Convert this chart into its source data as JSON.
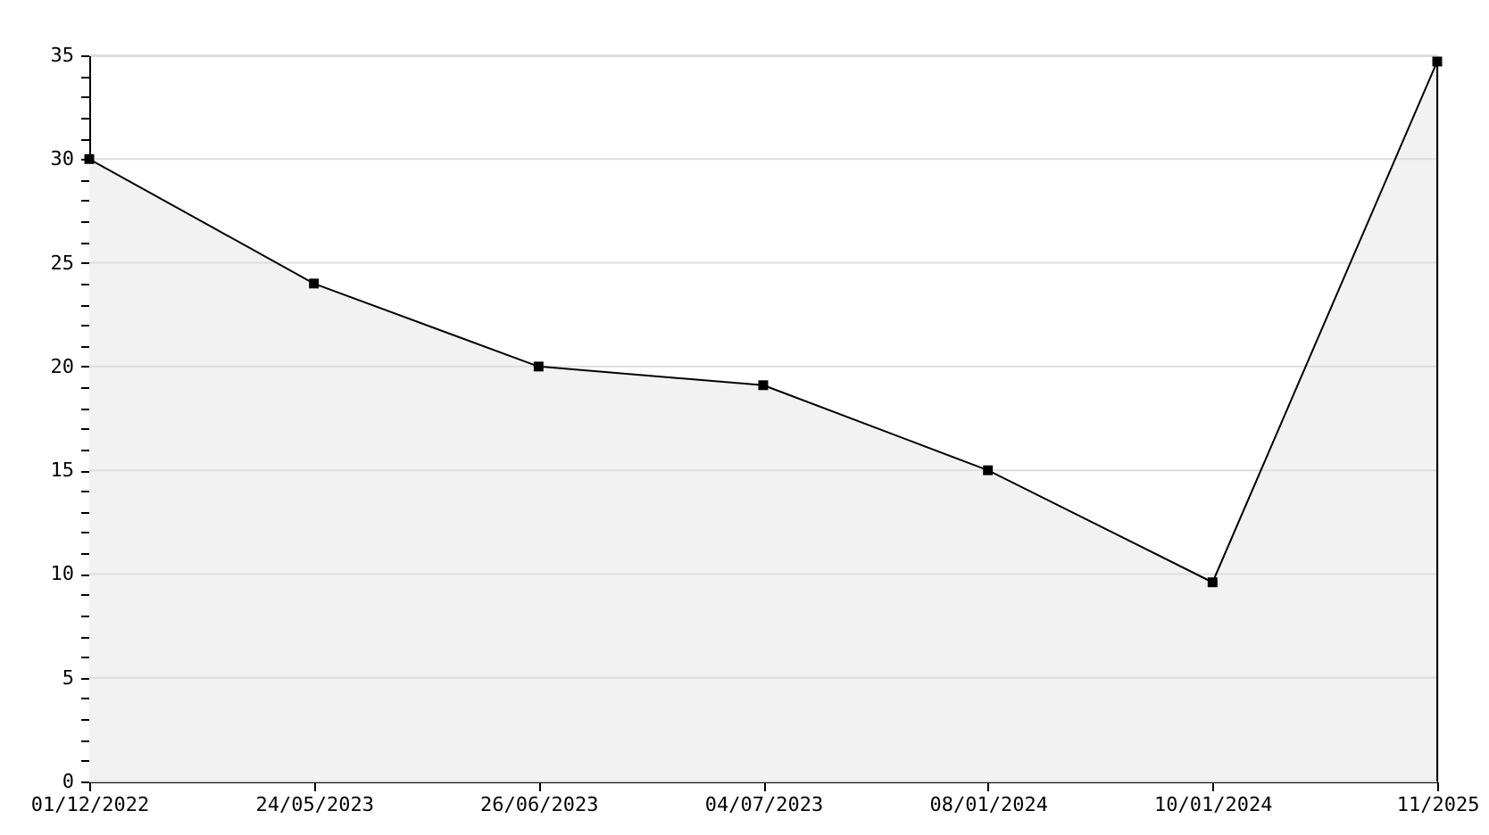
{
  "chart_data": {
    "type": "area",
    "categories": [
      "01/12/2022",
      "24/05/2023",
      "26/06/2023",
      "04/07/2023",
      "08/01/2024",
      "10/01/2024",
      "11/2025"
    ],
    "series": [
      {
        "color": "#000000",
        "values": [
          30,
          24,
          20,
          19.1,
          15,
          9.6,
          34.7
        ]
      }
    ],
    "ylim": [
      0,
      35
    ],
    "yticks": [
      0,
      {
        "value": 1,
        "label": null
      },
      {
        "value": 2,
        "label": null
      },
      {
        "value": 3,
        "label": null
      },
      {
        "value": 4,
        "label": null
      },
      5,
      {
        "value": 6,
        "label": null
      },
      {
        "value": 7,
        "label": null
      },
      {
        "value": 8,
        "label": null
      },
      {
        "value": 9,
        "label": null
      },
      10,
      {
        "value": 11,
        "label": null
      },
      {
        "value": 12,
        "label": null
      },
      {
        "value": 13,
        "label": null
      },
      {
        "value": 14,
        "label": null
      },
      15,
      {
        "value": 16,
        "label": null
      },
      {
        "value": 17,
        "label": null
      },
      {
        "value": 18,
        "label": null
      },
      {
        "value": 19,
        "label": null
      },
      20,
      {
        "value": 21,
        "label": null
      },
      {
        "value": 22,
        "label": null
      },
      {
        "value": 23,
        "label": null
      },
      {
        "value": 24,
        "label": null
      },
      25,
      {
        "value": 26,
        "label": null
      },
      {
        "value": 27,
        "label": null
      },
      {
        "value": 28,
        "label": null
      },
      {
        "value": 29,
        "label": null
      },
      30,
      {
        "value": 31,
        "label": null
      },
      {
        "value": 32,
        "label": null
      },
      {
        "value": 33,
        "label": null
      },
      {
        "value": 34,
        "label": null
      },
      35
    ],
    "grid": "y",
    "marker": "square",
    "line_style": "solid"
  }
}
